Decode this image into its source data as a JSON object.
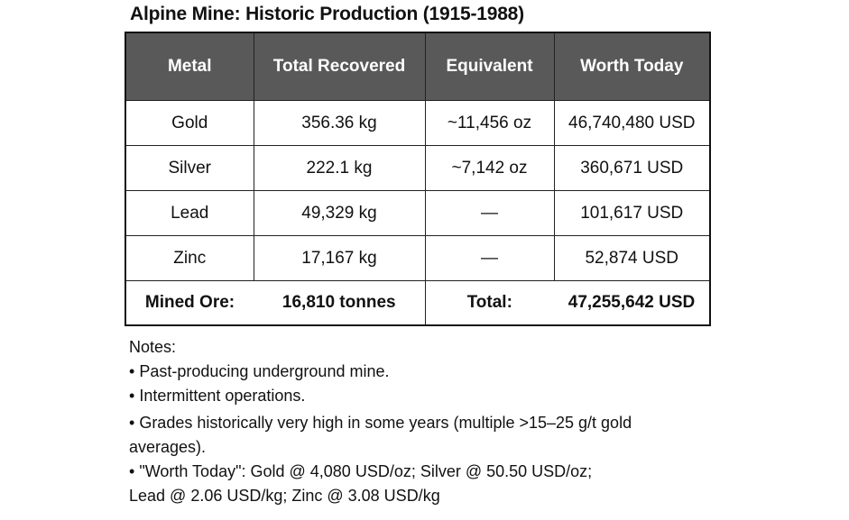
{
  "title": "Alpine Mine: Historic Production (1915-1988)",
  "table": {
    "headers": [
      "Metal",
      "Total Recovered",
      "Equivalent",
      "Worth Today"
    ],
    "rows": [
      {
        "metal": "Gold",
        "recovered": "356.36 kg",
        "equivalent": "~11,456 oz",
        "worth": "46,740,480 USD"
      },
      {
        "metal": "Silver",
        "recovered": "222.1 kg",
        "equivalent": "~7,142 oz",
        "worth": "360,671 USD"
      },
      {
        "metal": "Lead",
        "recovered": "49,329 kg",
        "equivalent": "—",
        "worth": "101,617 USD"
      },
      {
        "metal": "Zinc",
        "recovered": "17,167 kg",
        "equivalent": "—",
        "worth": "52,874 USD"
      }
    ],
    "footer": {
      "ore_label": "Mined Ore:",
      "ore_value": "16,810 tonnes",
      "total_label": "Total:",
      "total_value": "47,255,642 USD"
    }
  },
  "notes": {
    "heading": "Notes:",
    "items": [
      "Past-producing underground mine.",
      "Intermittent operations.",
      "Grades historically very high in some years (multiple >15–25 g/t gold",
      "\"Worth Today\": Gold @ 4,080 USD/oz; Silver @ 50.50 USD/oz;"
    ],
    "continuations": [
      "averages).",
      "Lead @ 2.06 USD/kg; Zinc @ 3.08 USD/kg"
    ]
  }
}
